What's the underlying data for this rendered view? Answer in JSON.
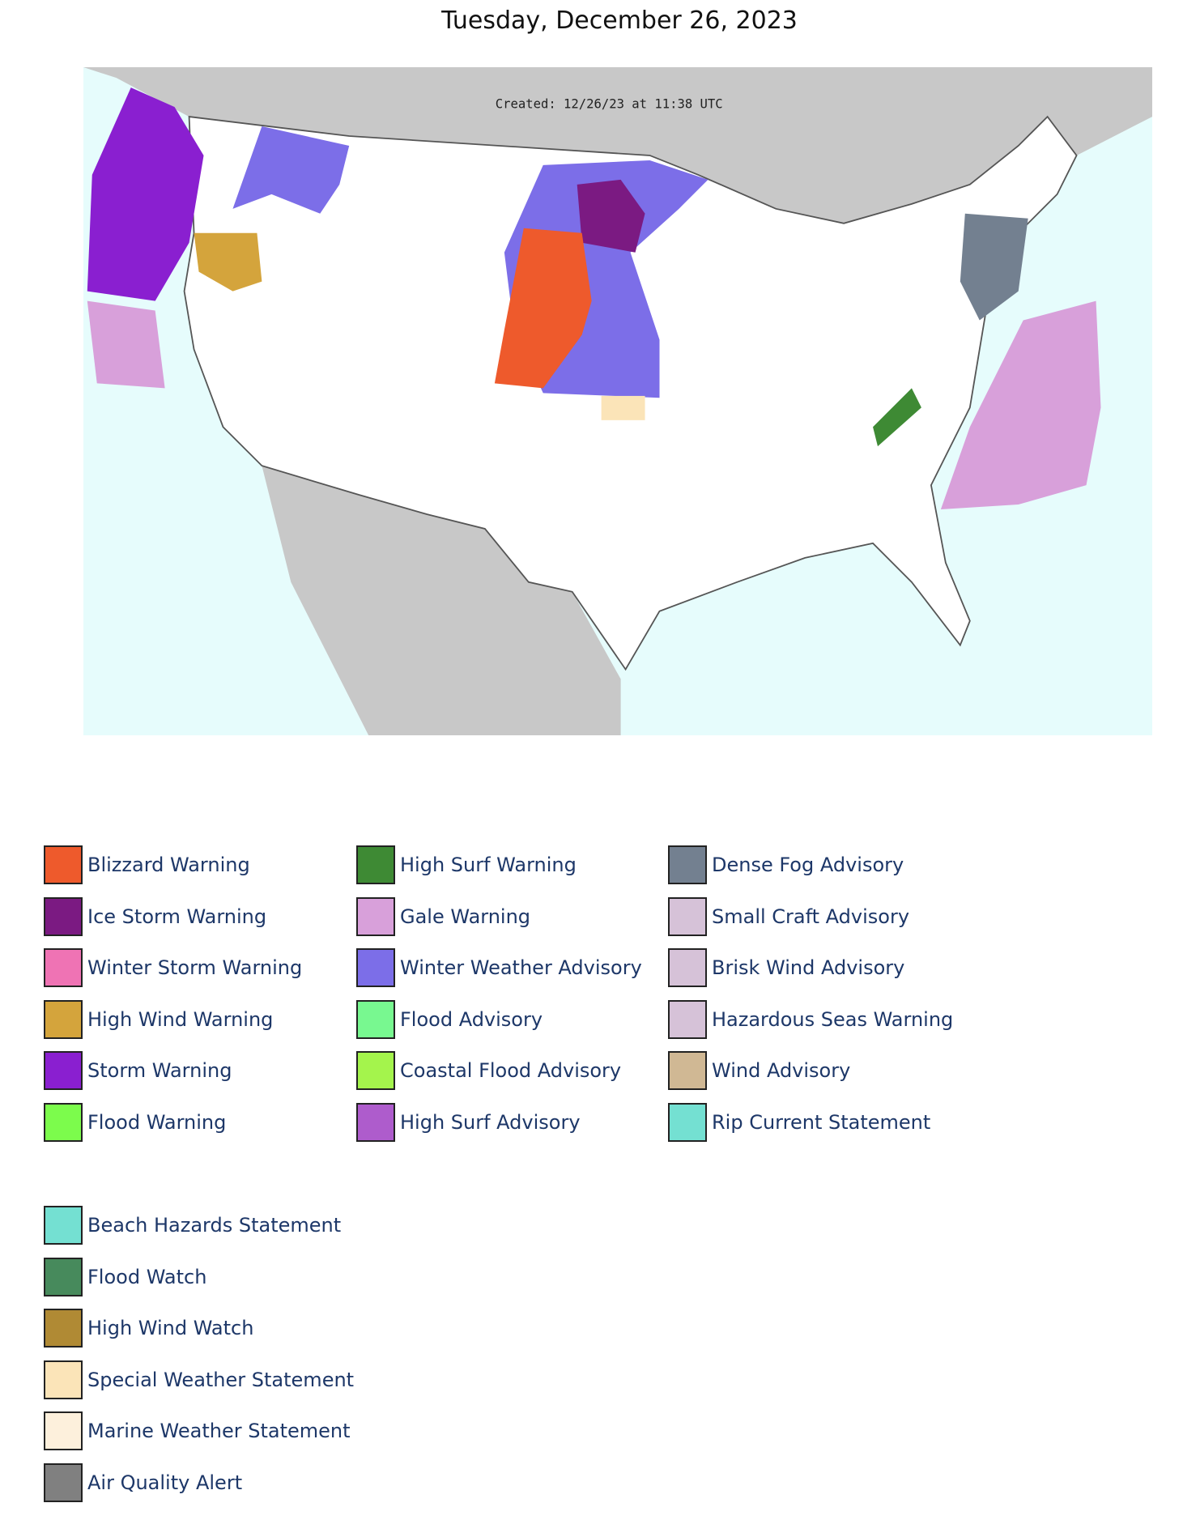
{
  "title": "Tuesday, December 26, 2023",
  "map": {
    "caption": "Created: 12/26/23 at 11:38 UTC"
  },
  "legend": {
    "groups": [
      {
        "columns": [
          [
            {
              "label": "Blizzard Warning",
              "color": "#ee5a2c"
            },
            {
              "label": "Ice Storm Warning",
              "color": "#7b1a82"
            },
            {
              "label": "Winter Storm Warning",
              "color": "#ef73b4"
            },
            {
              "label": "High Wind Warning",
              "color": "#d4a43c"
            },
            {
              "label": "Storm Warning",
              "color": "#8a1fd0"
            },
            {
              "label": "Flood Warning",
              "color": "#7cfc4c"
            }
          ],
          [
            {
              "label": "High Surf Warning",
              "color": "#3e8a34"
            },
            {
              "label": "Gale Warning",
              "color": "#d8a0da"
            },
            {
              "label": "Winter Weather Advisory",
              "color": "#7c6ee8"
            },
            {
              "label": "Flood Advisory",
              "color": "#78f890"
            },
            {
              "label": "Coastal Flood Advisory",
              "color": "#a4f44c"
            },
            {
              "label": "High Surf Advisory",
              "color": "#ae5ccc"
            }
          ],
          [
            {
              "label": "Dense Fog Advisory",
              "color": "#738090"
            },
            {
              "label": "Small Craft Advisory",
              "color": "#d6c2d8"
            },
            {
              "label": "Brisk Wind Advisory",
              "color": "#d6c2d8"
            },
            {
              "label": "Hazardous Seas Warning",
              "color": "#d6c2d8"
            },
            {
              "label": "Wind Advisory",
              "color": "#d0b894"
            },
            {
              "label": "Rip Current Statement",
              "color": "#74e0d2"
            }
          ]
        ]
      },
      {
        "columns": [
          [
            {
              "label": "Beach Hazards Statement",
              "color": "#74e0d2"
            },
            {
              "label": "Flood Watch",
              "color": "#478a5c"
            },
            {
              "label": "High Wind Watch",
              "color": "#b08a34"
            },
            {
              "label": "Special Weather Statement",
              "color": "#fbe4b8"
            },
            {
              "label": "Marine Weather Statement",
              "color": "#fdf0dc"
            },
            {
              "label": "Air Quality Alert",
              "color": "#808080"
            }
          ]
        ]
      }
    ]
  }
}
